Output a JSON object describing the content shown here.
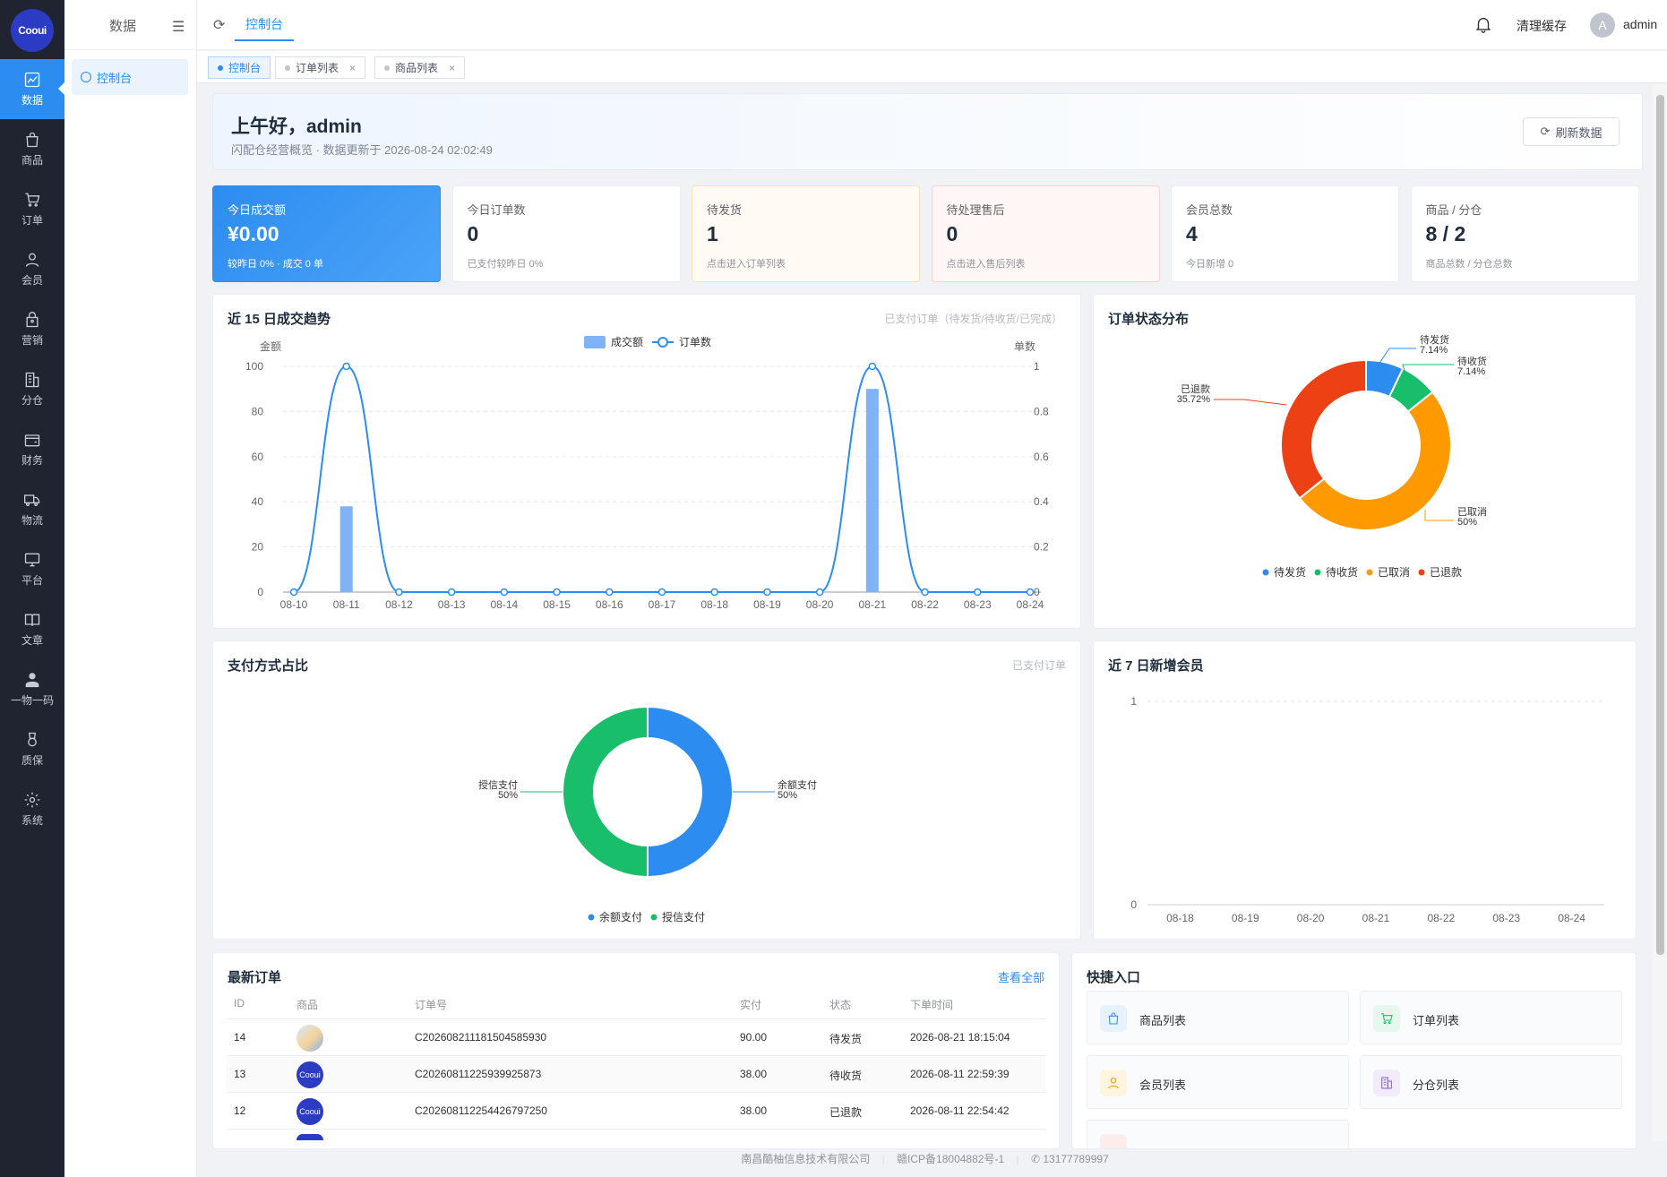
{
  "brand": {
    "logo_text": "Cooui"
  },
  "rail": [
    {
      "label": "数据",
      "icon": "trend-icon",
      "active": true
    },
    {
      "label": "商品",
      "icon": "bag-icon"
    },
    {
      "label": "订单",
      "icon": "cart-icon"
    },
    {
      "label": "会员",
      "icon": "user-icon"
    },
    {
      "label": "营销",
      "icon": "gift-icon"
    },
    {
      "label": "分仓",
      "icon": "building-icon"
    },
    {
      "label": "财务",
      "icon": "wallet-icon"
    },
    {
      "label": "物流",
      "icon": "truck-icon"
    },
    {
      "label": "平台",
      "icon": "monitor-icon"
    },
    {
      "label": "文章",
      "icon": "book-icon"
    },
    {
      "label": "一物一码",
      "icon": "person-icon"
    },
    {
      "label": "质保",
      "icon": "medal-icon"
    },
    {
      "label": "系统",
      "icon": "gear-icon"
    }
  ],
  "subside": {
    "title": "数据",
    "item": "控制台"
  },
  "topbar": {
    "crumb": "控制台",
    "clear_cache": "清理缓存",
    "avatar_letter": "A",
    "username": "admin"
  },
  "tabs": [
    {
      "label": "控制台",
      "active": true
    },
    {
      "label": "订单列表",
      "close": "×"
    },
    {
      "label": "商品列表",
      "close": "×"
    }
  ],
  "greeting": {
    "title": "上午好，admin",
    "subtitle": "闪配仓经营概览 · 数据更新于 2026-08-24 02:02:49",
    "refresh_button": "刷新数据"
  },
  "stats": [
    {
      "label": "今日成交额",
      "value": "¥0.00",
      "note": "较昨日 0% · 成交 0 单",
      "style": "blue"
    },
    {
      "label": "今日订单数",
      "value": "0",
      "note": "已支付较昨日 0%"
    },
    {
      "label": "待发货",
      "value": "1",
      "note": "点击进入订单列表",
      "style": "orange"
    },
    {
      "label": "待处理售后",
      "value": "0",
      "note": "点击进入售后列表",
      "style": "red"
    },
    {
      "label": "会员总数",
      "value": "4",
      "note": "今日新增 0"
    },
    {
      "label": "商品 / 分仓",
      "value": "8 / 2",
      "note": "商品总数 / 分仓总数"
    }
  ],
  "trend": {
    "title": "近 15 日成交趋势",
    "hint": "已支付订单（待发货/待收货/已完成）",
    "chart_data": {
      "type": "bar",
      "categories": [
        "08-10",
        "08-11",
        "08-12",
        "08-13",
        "08-14",
        "08-15",
        "08-16",
        "08-17",
        "08-18",
        "08-19",
        "08-20",
        "08-21",
        "08-22",
        "08-23",
        "08-24"
      ],
      "series": [
        {
          "name": "成交额",
          "type": "bar",
          "axis": "left",
          "values": [
            0,
            38,
            0,
            0,
            0,
            0,
            0,
            0,
            0,
            0,
            0,
            90,
            0,
            0,
            0
          ]
        },
        {
          "name": "订单数",
          "type": "line",
          "axis": "right",
          "values": [
            0,
            1,
            0,
            0,
            0,
            0,
            0,
            0,
            0,
            0,
            0,
            1,
            0,
            0,
            0
          ]
        }
      ],
      "ylabel": "金额",
      "y2label": "单数",
      "ylim": [
        0,
        100
      ],
      "y2lim": [
        0,
        1
      ],
      "yticks": [
        "0",
        "20",
        "40",
        "60",
        "80",
        "100"
      ],
      "y2ticks": [
        "0",
        "0.2",
        "0.4",
        "0.6",
        "0.8",
        "1"
      ],
      "legend": "top-center",
      "grid": true,
      "colors": {
        "bar": "#7fb3f5",
        "line": "#2d8cf0"
      }
    }
  },
  "status_pie": {
    "title": "订单状态分布",
    "chart_data": {
      "type": "pie",
      "slices": [
        {
          "name": "待发货",
          "value": 7.14,
          "label": "7.14%",
          "color": "#2d8cf0"
        },
        {
          "name": "待收货",
          "value": 7.14,
          "label": "7.14%",
          "color": "#19be6b"
        },
        {
          "name": "已取消",
          "value": 50,
          "label": "50%",
          "color": "#ff9900"
        },
        {
          "name": "已退款",
          "value": 35.72,
          "label": "35.72%",
          "color": "#ed4014"
        }
      ],
      "legend": "bottom-center"
    }
  },
  "pay_pie": {
    "title": "支付方式占比",
    "hint": "已支付订单",
    "chart_data": {
      "type": "pie",
      "slices": [
        {
          "name": "余额支付",
          "value": 50,
          "label": "50%",
          "color": "#2d8cf0"
        },
        {
          "name": "授信支付",
          "value": 50,
          "label": "50%",
          "color": "#19be6b"
        }
      ],
      "legend": "bottom-center"
    }
  },
  "members": {
    "title": "近 7 日新增会员",
    "chart_data": {
      "type": "line",
      "categories": [
        "08-18",
        "08-19",
        "08-20",
        "08-21",
        "08-22",
        "08-23",
        "08-24"
      ],
      "values": [
        0,
        0,
        0,
        0,
        0,
        0,
        0
      ],
      "ylim": [
        0,
        1
      ],
      "yticks": [
        "0",
        "1"
      ]
    }
  },
  "orders": {
    "title": "最新订单",
    "view_all": "查看全部",
    "columns": [
      "ID",
      "商品",
      "订单号",
      "实付",
      "状态",
      "下单时间"
    ],
    "rows": [
      {
        "id": "14",
        "order_no": "C202608211181504585930",
        "paid": "90.00",
        "status": "待发货",
        "time": "2026-08-21 18:15:04",
        "thumb": "product"
      },
      {
        "id": "13",
        "order_no": "C20260811225939925873",
        "paid": "38.00",
        "status": "待收货",
        "time": "2026-08-11 22:59:39",
        "thumb": "Cooui"
      },
      {
        "id": "12",
        "order_no": "C202608112254426797250",
        "paid": "38.00",
        "status": "已退款",
        "time": "2026-08-11 22:54:42",
        "thumb": "Cooui"
      }
    ]
  },
  "quick": {
    "title": "快捷入口",
    "items": [
      {
        "label": "商品列表",
        "icon": "bag-icon",
        "color": "#2d8cf0",
        "bg": "#e8f2ff"
      },
      {
        "label": "订单列表",
        "icon": "cart-icon",
        "color": "#19be6b",
        "bg": "#e6f7ee"
      },
      {
        "label": "会员列表",
        "icon": "user-icon",
        "color": "#ff9900",
        "bg": "#fff4e0"
      },
      {
        "label": "分仓列表",
        "icon": "building-icon",
        "color": "#8a63d2",
        "bg": "#f1ebfb"
      }
    ]
  },
  "footer": {
    "company": "南昌酷柚信息技术有限公司",
    "icp": "赣ICP备18004882号-1",
    "phone": "13177789997"
  }
}
